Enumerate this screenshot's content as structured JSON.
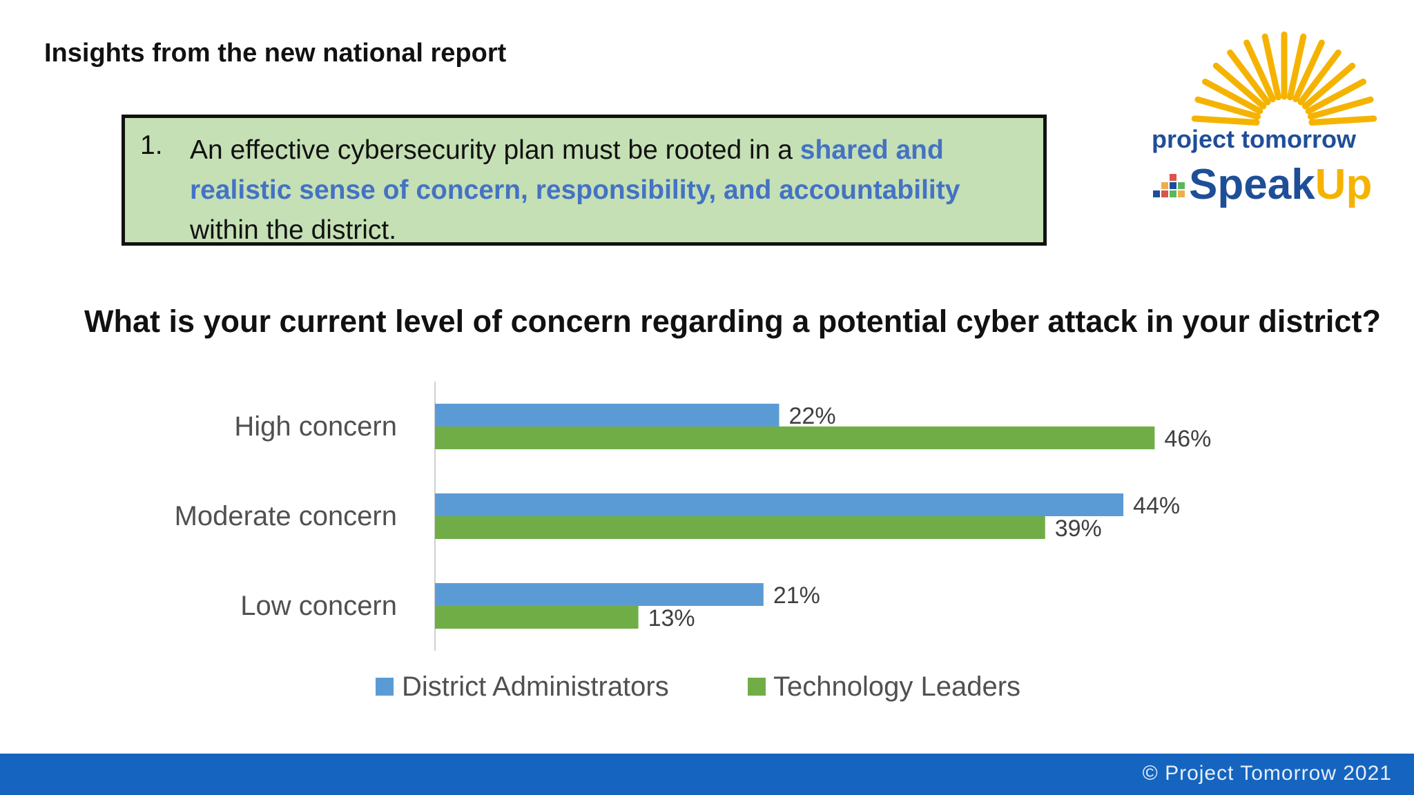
{
  "header": {
    "title": "Insights from the new national report"
  },
  "callout": {
    "number": "1.",
    "text_before": "An effective cybersecurity plan must be rooted in a ",
    "text_highlight": "shared and realistic sense of concern, responsibility, and accountability",
    "text_after": " within the district."
  },
  "logo": {
    "line1": "project tomorrow",
    "brand_a": "Speak",
    "brand_b": "Up"
  },
  "question": "What is your current level of concern regarding a potential cyber attack in your district?",
  "colors": {
    "series1": "#5b9bd5",
    "series2": "#70ad47",
    "footer": "#1565c0",
    "highlight": "#4472c4"
  },
  "chart_data": {
    "type": "bar",
    "orientation": "horizontal",
    "title": "What is your current level of concern regarding a potential cyber attack in your district?",
    "categories": [
      "High concern",
      "Moderate concern",
      "Low concern"
    ],
    "series": [
      {
        "name": "District Administrators",
        "values": [
          22,
          44,
          21
        ],
        "labels": [
          "22%",
          "44%",
          "21%"
        ]
      },
      {
        "name": "Technology Leaders",
        "values": [
          46,
          39,
          13
        ],
        "labels": [
          "46%",
          "39%",
          "13%"
        ]
      }
    ],
    "xlim": [
      0,
      50
    ],
    "grid": false,
    "legend": "bottom"
  },
  "footer": {
    "text": "© Project Tomorrow 2021"
  }
}
